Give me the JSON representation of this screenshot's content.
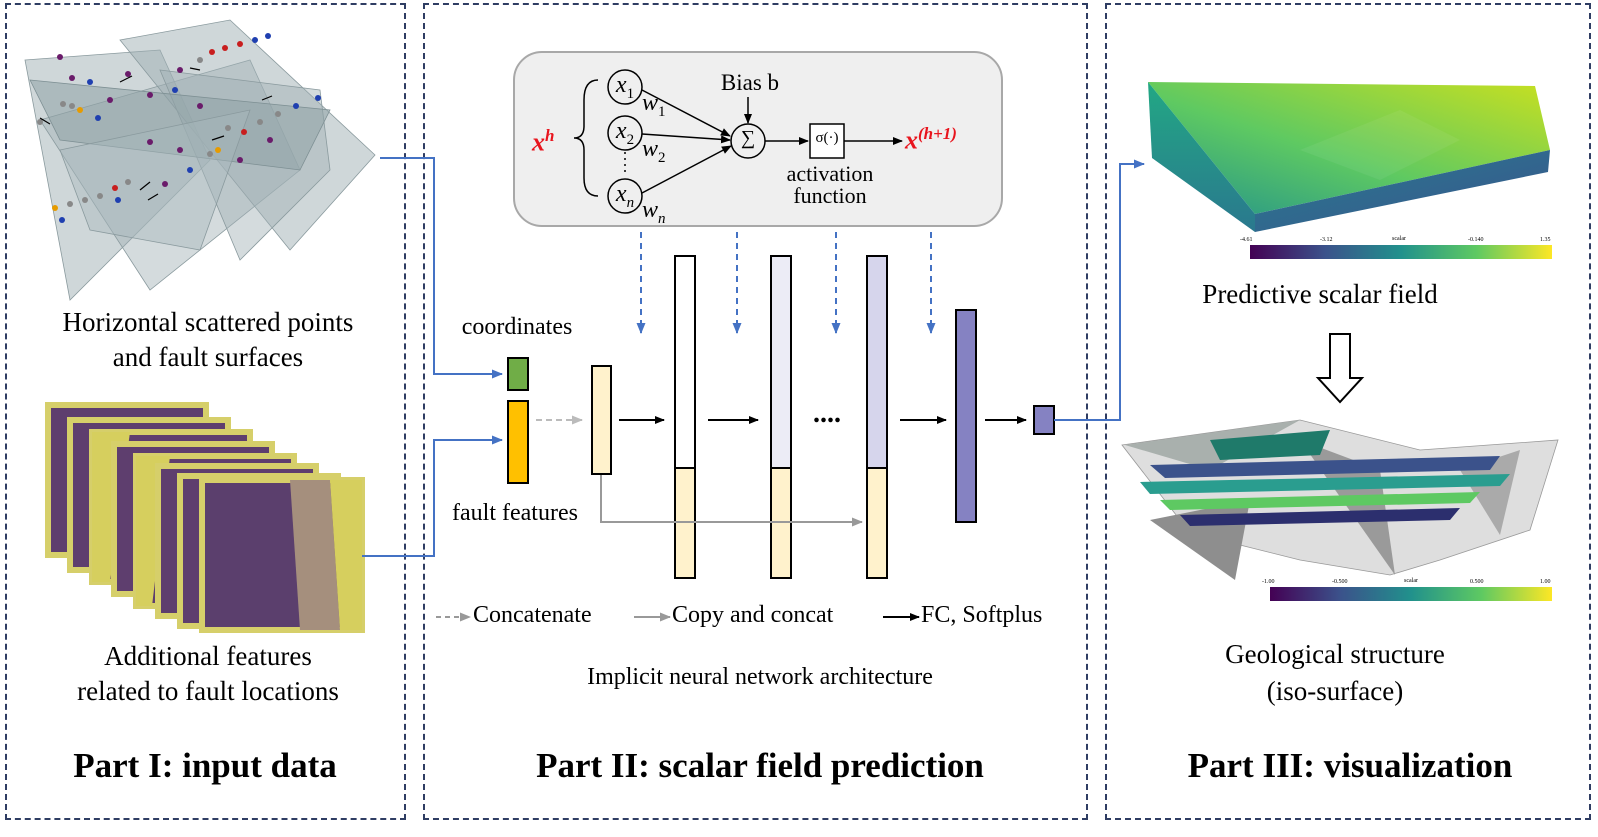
{
  "part1": {
    "title": "Part I: input data",
    "cap1_line1": "Horizontal scattered points",
    "cap1_line2": "and fault surfaces",
    "cap2_line1": "Additional features",
    "cap2_line2": "related to fault locations"
  },
  "part2": {
    "title": "Part II: scalar field prediction",
    "subtitle": "Implicit neural network architecture",
    "coordinates_label": "coordinates",
    "fault_features_label": "fault features",
    "neuron": {
      "inputs": [
        "x1",
        "x2",
        "xn"
      ],
      "weights": [
        "w1",
        "w2",
        "wn"
      ],
      "bias_label": "Bias b",
      "sum_symbol": "∑",
      "activation_symbol": "σ(·)",
      "activation_label_line1": "activation",
      "activation_label_line2": "function",
      "input_label": "x^h",
      "output_label": "x^(h+1)"
    },
    "ellipsis": "....",
    "legend": {
      "concatenate": "Concatenate",
      "copy_concat": "Copy and concat",
      "fc_softplus": "FC, Softplus"
    }
  },
  "part3": {
    "title": "Part III: visualization",
    "scalar_field_label": "Predictive scalar field",
    "geo_line1": "Geological structure",
    "geo_line2": "(iso-surface)",
    "colorbar1_ticks": [
      "-4.61",
      "-3.12",
      "-0.140",
      "1.35"
    ],
    "colorbar2_ticks": [
      "-1.00",
      "-0.500",
      "0.500",
      "1.00"
    ],
    "colorbar_label": "scalar"
  },
  "colors": {
    "panel_border": "#2f3d63",
    "arrow_blue": "#4472c4",
    "input_label_red": "#e8141d",
    "coord_green": "#70ad47",
    "fault_orange": "#ffc000",
    "layer_cream": "#fff2cc",
    "layer_lavender": "#e6e6f5",
    "layer_purple": "#8582c2"
  }
}
